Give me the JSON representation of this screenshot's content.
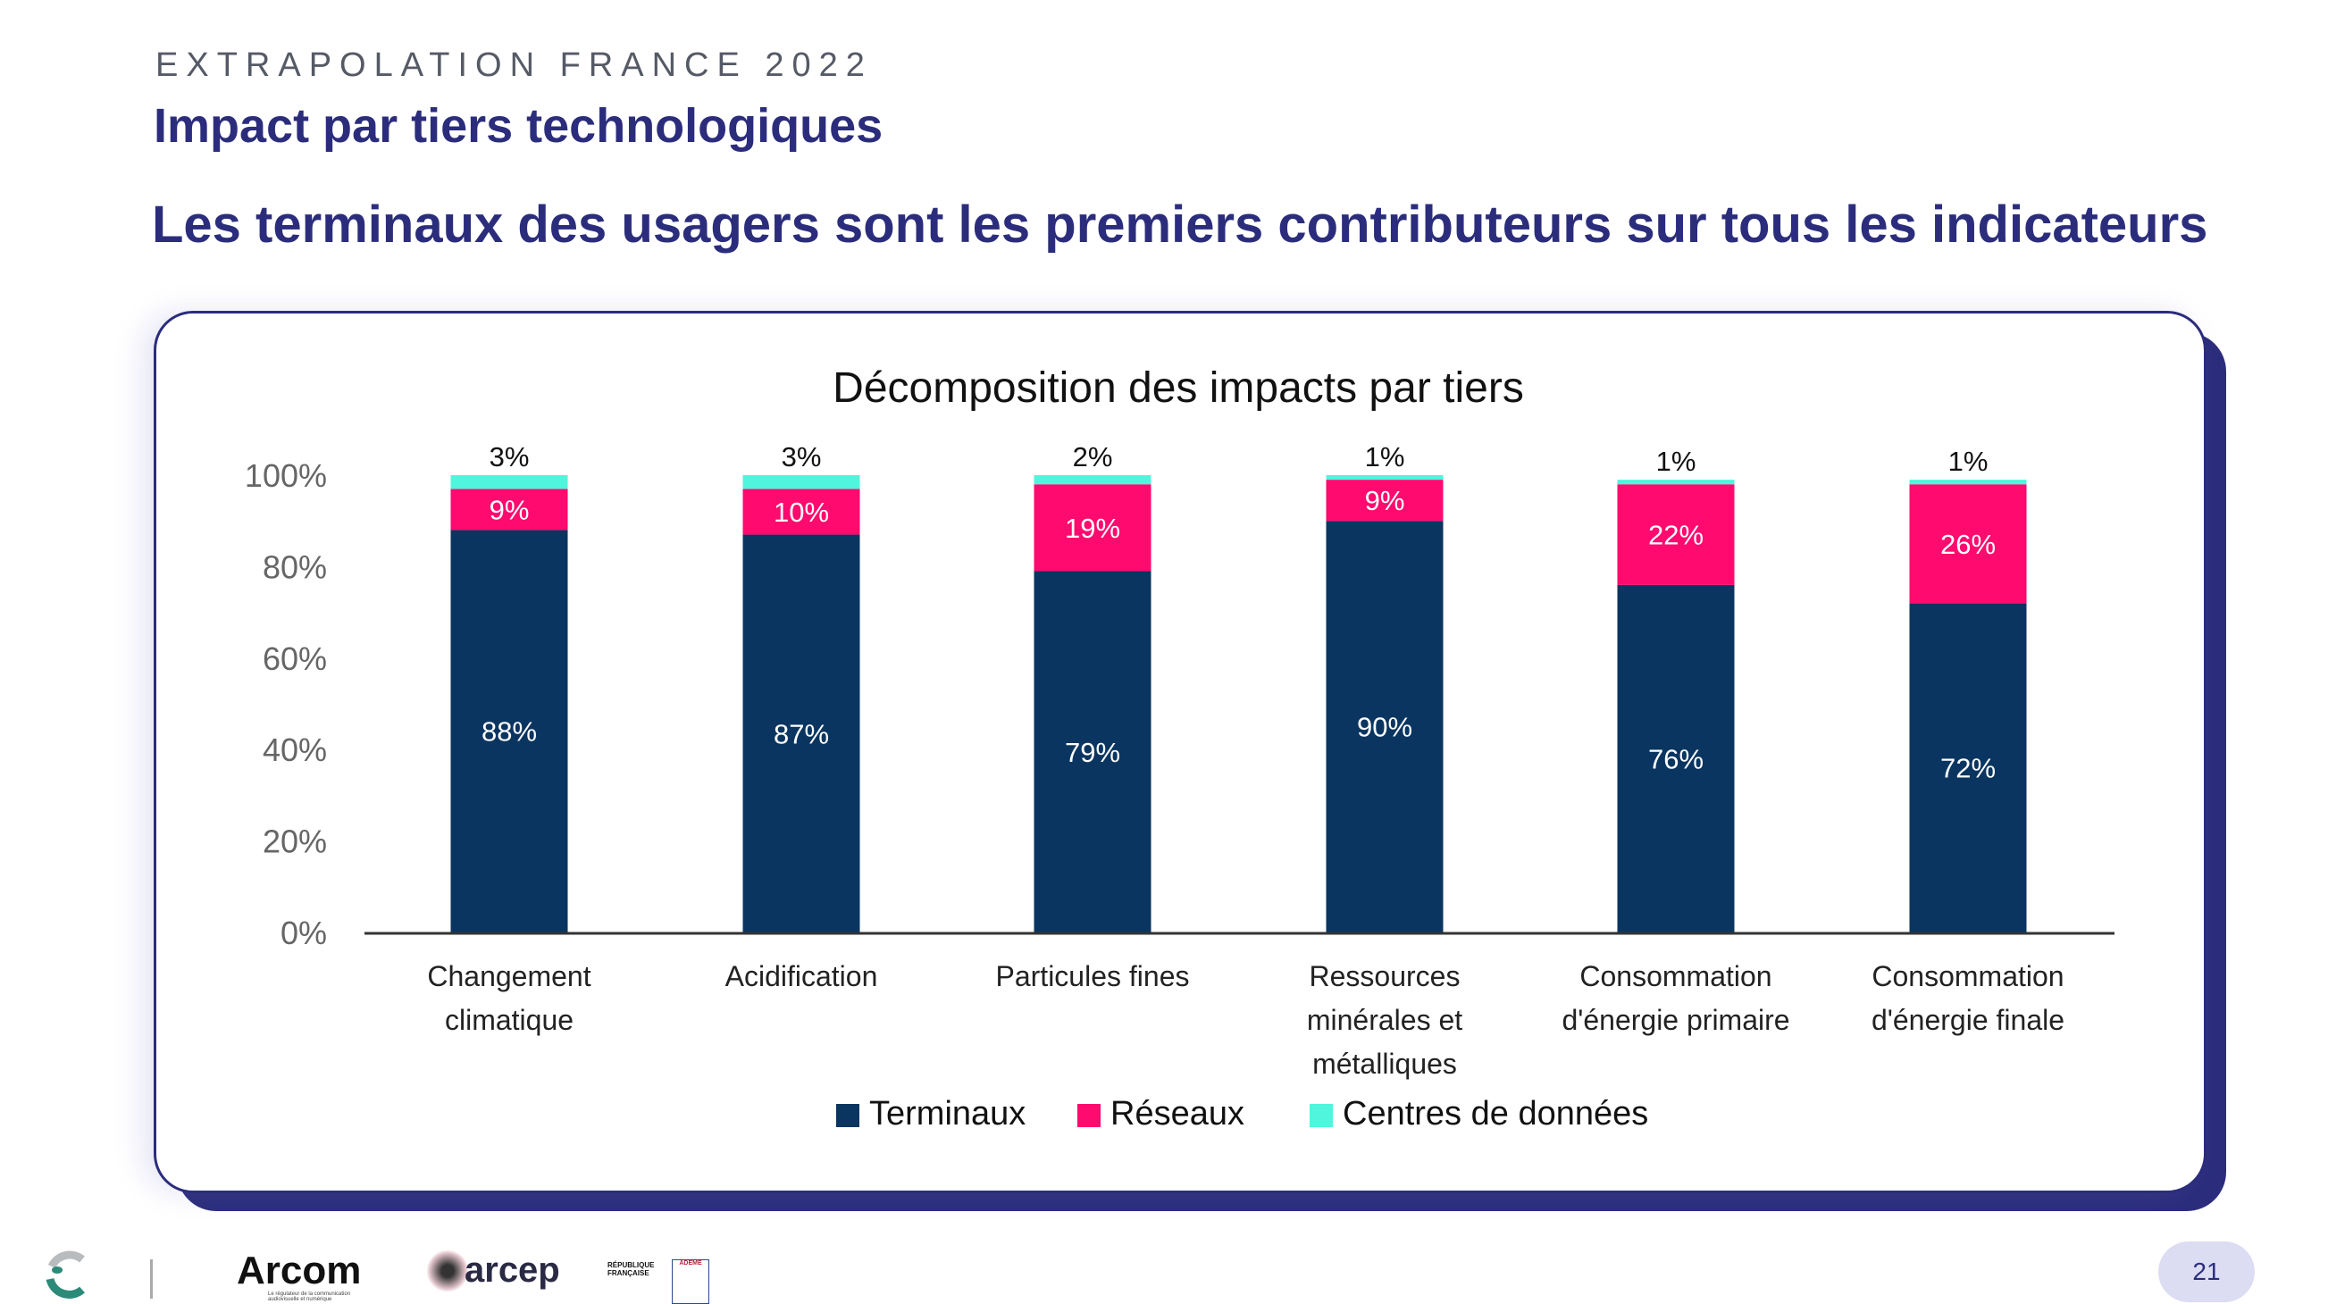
{
  "header": {
    "kicker": "EXTRAPOLATION FRANCE 2022",
    "title": "Impact par tiers technologiques",
    "subtitle": "Les terminaux des usagers sont les premiers contributeurs sur tous les indicateurs"
  },
  "chart_data": {
    "type": "bar",
    "stacked": true,
    "title": "Décomposition des impacts par tiers",
    "categories": [
      [
        "Changement",
        "climatique"
      ],
      [
        "Acidification"
      ],
      [
        "Particules fines"
      ],
      [
        "Ressources",
        "minérales et",
        "métalliques"
      ],
      [
        "Consommation",
        "d'énergie primaire"
      ],
      [
        "Consommation",
        "d'énergie finale"
      ]
    ],
    "series": [
      {
        "name": "Terminaux",
        "color": "#0a3560",
        "values": [
          88,
          87,
          79,
          90,
          76,
          72
        ],
        "label_color": "#ffffff"
      },
      {
        "name": "Réseaux",
        "color": "#ff0a6e",
        "values": [
          9,
          10,
          19,
          9,
          22,
          26
        ],
        "label_color": "#ffffff"
      },
      {
        "name": "Centres de données",
        "color": "#4ff5dc",
        "values": [
          3,
          3,
          2,
          1,
          1,
          1
        ],
        "label_color": "#111111"
      }
    ],
    "yticks": [
      "0%",
      "20%",
      "40%",
      "60%",
      "80%",
      "100%"
    ],
    "ylim": [
      0,
      100
    ],
    "grid": false,
    "legend": "bottom"
  },
  "footer": {
    "logos": [
      "Arcom",
      "arcep",
      "RÉPUBLIQUE FRANÇAISE",
      "ADEME"
    ],
    "arcom_tagline": "Le régulateur de la communication audiovisuelle et numérique",
    "page_number": "21"
  }
}
